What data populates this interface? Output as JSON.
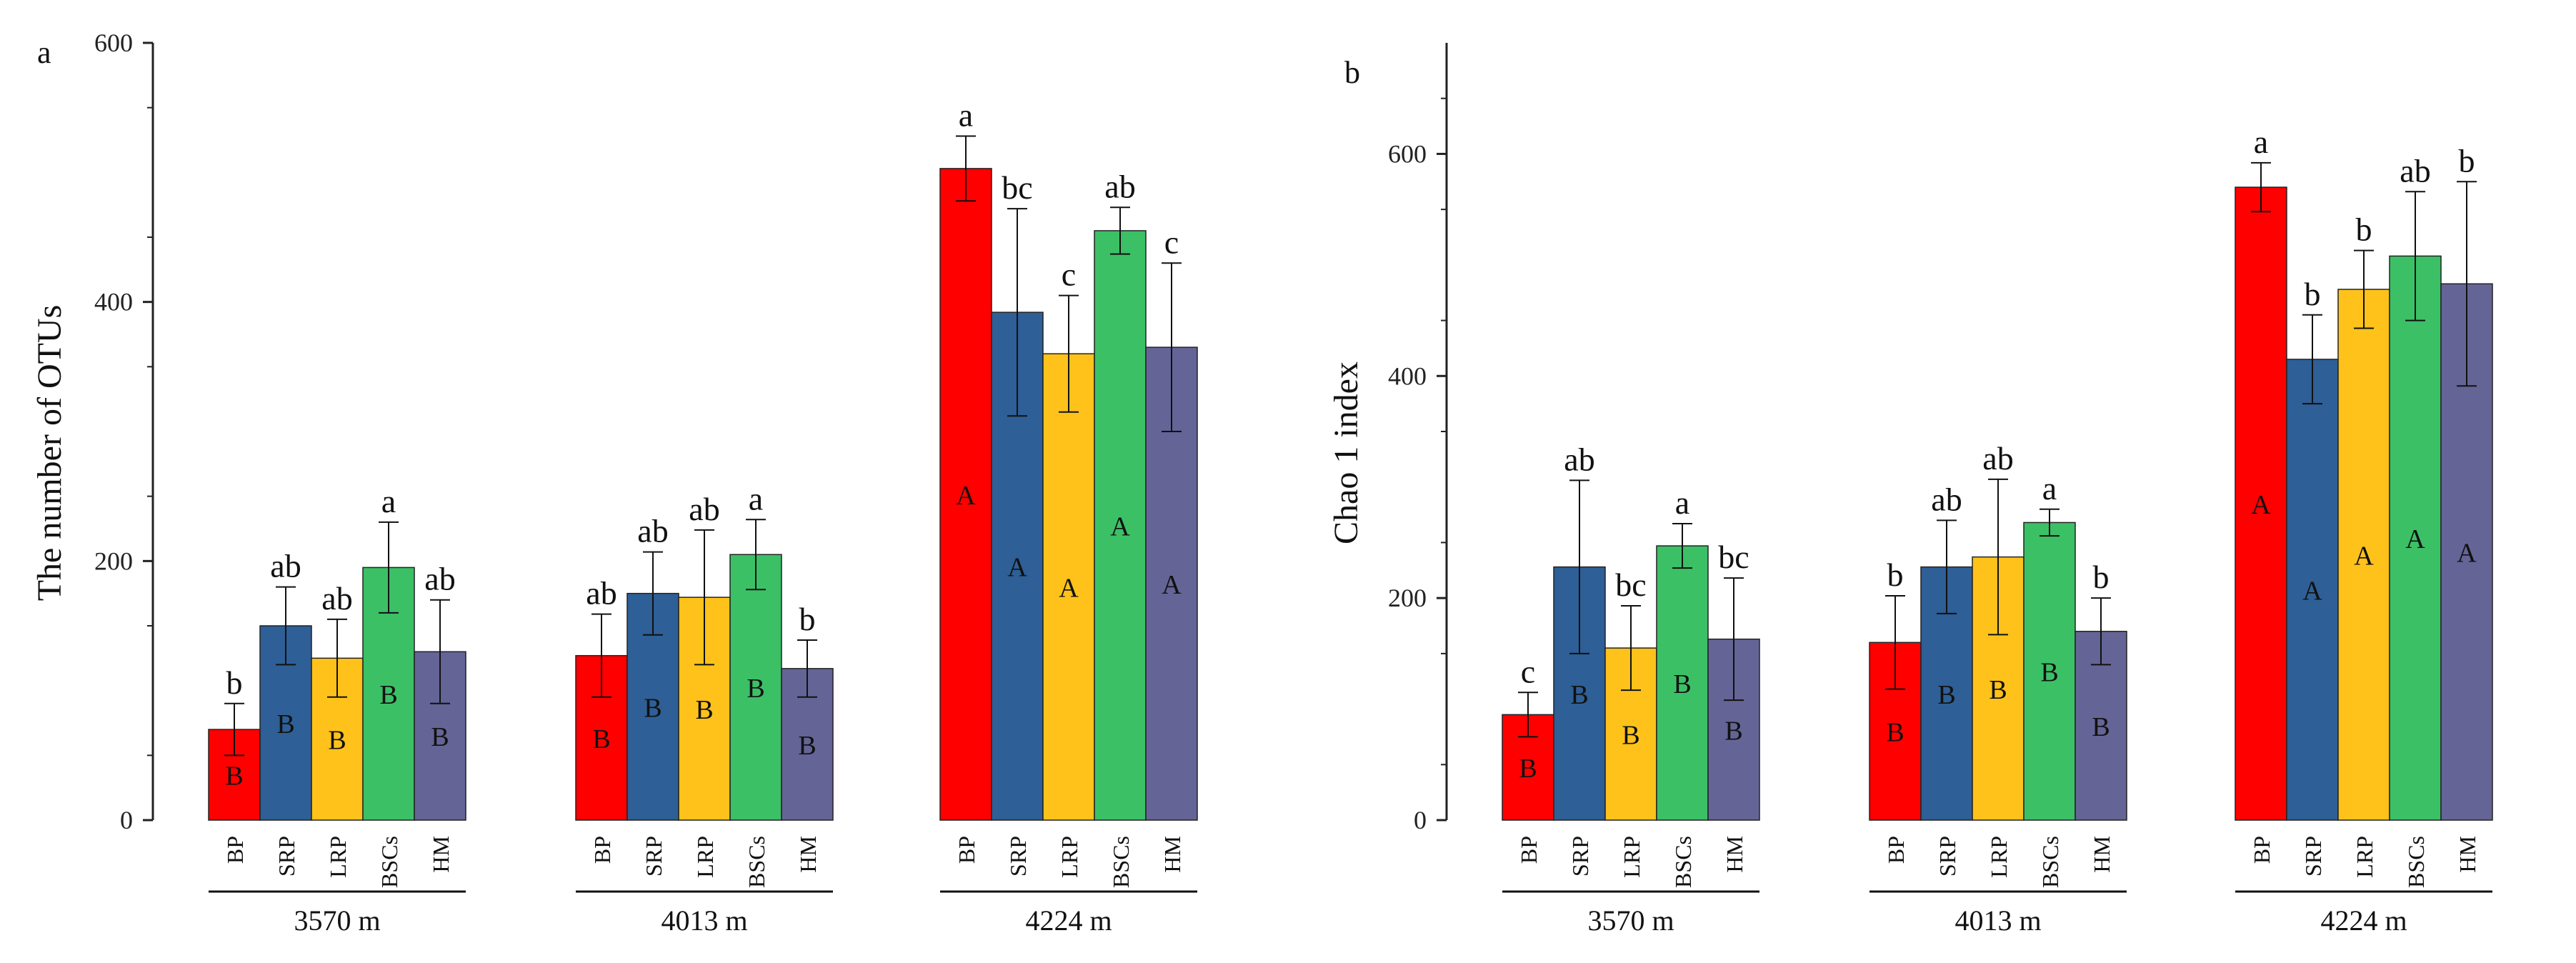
{
  "chart_data": [
    {
      "type": "bar",
      "panel_label": "a",
      "ylabel": "The number of OTUs",
      "xlabel": "",
      "ylim": [
        0,
        600
      ],
      "yticks": [
        0,
        200,
        400,
        600
      ],
      "groups": [
        "3570 m",
        "4013 m",
        "4224 m"
      ],
      "categories": [
        "BP",
        "SRP",
        "LRP",
        "BSCs",
        "HM"
      ],
      "colors": [
        "#ff0000",
        "#2e5f96",
        "#ffc21a",
        "#3cc066",
        "#646496"
      ],
      "values": [
        [
          70,
          150,
          125,
          195,
          130
        ],
        [
          127,
          175,
          172,
          205,
          117
        ],
        [
          503,
          392,
          360,
          455,
          365
        ]
      ],
      "errors": [
        [
          20,
          30,
          30,
          35,
          40
        ],
        [
          32,
          32,
          52,
          27,
          22
        ],
        [
          25,
          80,
          45,
          18,
          65
        ]
      ],
      "upper_letters": [
        [
          "b",
          "ab",
          "ab",
          "a",
          "ab"
        ],
        [
          "ab",
          "ab",
          "ab",
          "a",
          "b"
        ],
        [
          "a",
          "bc",
          "c",
          "ab",
          "c"
        ]
      ],
      "lower_letters": [
        [
          "B",
          "B",
          "B",
          "B",
          "B"
        ],
        [
          "B",
          "B",
          "B",
          "B",
          "B"
        ],
        [
          "A",
          "A",
          "A",
          "A",
          "A"
        ]
      ]
    },
    {
      "type": "bar",
      "panel_label": "b",
      "ylabel": "Chao 1 index",
      "xlabel": "",
      "ylim": [
        0,
        700
      ],
      "yticks": [
        0,
        200,
        400,
        600
      ],
      "groups": [
        "3570 m",
        "4013 m",
        "4224 m"
      ],
      "categories": [
        "BP",
        "SRP",
        "LRP",
        "BSCs",
        "HM"
      ],
      "colors": [
        "#ff0000",
        "#2e5f96",
        "#ffc21a",
        "#3cc066",
        "#646496"
      ],
      "values": [
        [
          95,
          228,
          155,
          247,
          163
        ],
        [
          160,
          228,
          237,
          268,
          170
        ],
        [
          570,
          415,
          478,
          508,
          483
        ]
      ],
      "errors": [
        [
          20,
          78,
          38,
          20,
          55
        ],
        [
          42,
          42,
          70,
          12,
          30
        ],
        [
          22,
          40,
          35,
          58,
          92
        ]
      ],
      "upper_letters": [
        [
          "c",
          "ab",
          "bc",
          "a",
          "bc"
        ],
        [
          "b",
          "ab",
          "ab",
          "a",
          "b"
        ],
        [
          "a",
          "b",
          "b",
          "ab",
          "b"
        ]
      ],
      "lower_letters": [
        [
          "B",
          "B",
          "B",
          "B",
          "B"
        ],
        [
          "B",
          "B",
          "B",
          "B",
          "B"
        ],
        [
          "A",
          "A",
          "A",
          "A",
          "A"
        ]
      ]
    }
  ]
}
